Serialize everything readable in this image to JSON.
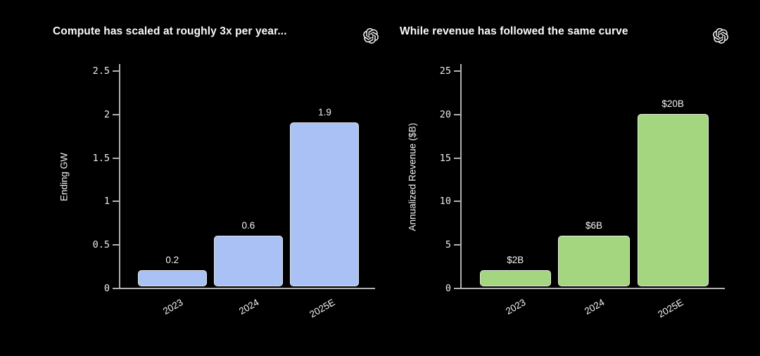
{
  "page": {
    "background_color": "#000000",
    "logo_icon": "openai-logo"
  },
  "chart_data": [
    {
      "type": "bar",
      "title": "Compute has scaled at roughly 3x per year...",
      "ylabel": "Ending GW",
      "xlabel": "",
      "categories": [
        "2023",
        "2024",
        "2025E"
      ],
      "values": [
        0.2,
        0.6,
        1.9
      ],
      "value_labels": [
        "0.2",
        "0.6",
        "1.9"
      ],
      "yticks": [
        0,
        0.5,
        1,
        1.5,
        2,
        2.5
      ],
      "ytick_labels": [
        "0",
        "0.5",
        "1",
        "1.5",
        "2",
        "2.5"
      ],
      "ylim": [
        0,
        2.5
      ],
      "grid": "off",
      "legend": "none",
      "bar_color": "#a9c1f4",
      "bar_border_color": "#e4e6ea"
    },
    {
      "type": "bar",
      "title": "While revenue has followed the same curve",
      "ylabel": "Annualized Revenue ($B)",
      "xlabel": "",
      "categories": [
        "2023",
        "2024",
        "2025E"
      ],
      "values": [
        2,
        6,
        20
      ],
      "value_labels": [
        "$2B",
        "$6B",
        "$20B"
      ],
      "yticks": [
        0,
        5,
        10,
        15,
        20,
        25
      ],
      "ytick_labels": [
        "0",
        "5",
        "10",
        "15",
        "20",
        "25"
      ],
      "ylim": [
        0,
        25
      ],
      "grid": "off",
      "legend": "none",
      "bar_color": "#a3d67f",
      "bar_border_color": "#e6eee0"
    }
  ],
  "style": {
    "axis_color": "#b0b0b0",
    "tick_text_color": "#ececec",
    "label_text_color": "#f5f5f5",
    "title_color": "#fafafa"
  }
}
